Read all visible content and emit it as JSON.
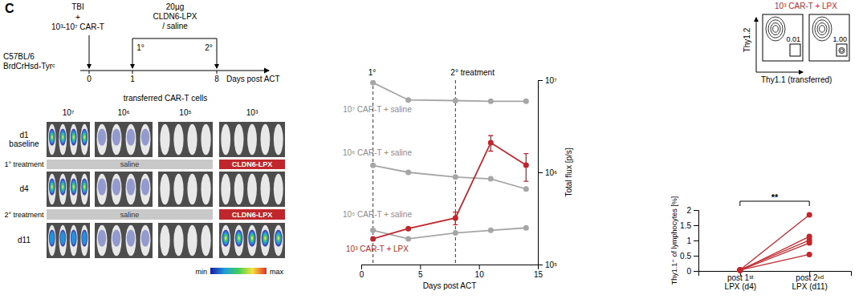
{
  "panel_label": "C",
  "schematic": {
    "treatment_top": [
      "TBI",
      "+",
      "10³-10⁷ CAR-T"
    ],
    "injection": [
      "20µg",
      "CLDN6-LPX",
      "/ saline"
    ],
    "strain": [
      "C57BL/6",
      "BrdCrHsd-Tyrᶜ"
    ],
    "doses": [
      "1°",
      "2°"
    ],
    "days": [
      0,
      1,
      8
    ],
    "axis_label": "Days post ACT"
  },
  "imaging": {
    "header": "transferred CAR-T cells",
    "columns": [
      "10⁷",
      "10⁶",
      "10⁵",
      "10³"
    ],
    "rows": [
      [
        "d1",
        "baseline"
      ],
      [
        "d4"
      ],
      [
        "d11"
      ]
    ],
    "treatments": [
      "1° treatment",
      "2° treatment"
    ],
    "control": "saline",
    "treated": "CLDN6-LPX",
    "colorbar": [
      "min",
      "max"
    ]
  },
  "flow": {
    "title": "10³ CAR-T + LPX",
    "y_label": "Thy1.2",
    "x_label": "Thy1.1 (transferred)",
    "gates": [
      "0.01",
      "1.00"
    ]
  },
  "chart_data": [
    {
      "type": "line",
      "log": "y",
      "marker": "circle",
      "x": [
        1,
        4,
        8,
        11,
        14
      ],
      "xlim": [
        0,
        15
      ],
      "xticks": [
        0,
        5,
        10,
        15
      ],
      "ylim": [
        100000,
        10000000
      ],
      "yticks": [
        {
          "value": 100000,
          "label": "10⁵"
        },
        {
          "value": 1000000,
          "label": "10⁶"
        },
        {
          "value": 10000000,
          "label": "10⁷"
        }
      ],
      "x_label": "Days post ACT",
      "y_label": "Total flux [p/s]",
      "annotations": [
        {
          "x": 1,
          "label": "1°"
        },
        {
          "x": 8,
          "label": "2° treatment"
        }
      ],
      "series": [
        {
          "name": "10⁷ CAR-T + saline",
          "color": "#a6a6a6",
          "values": [
            9400000,
            6100000,
            6000000,
            5900000,
            5900000
          ]
        },
        {
          "name": "10⁶ CAR-T + saline",
          "color": "#a6a6a6",
          "values": [
            1190000,
            1000000,
            890000,
            850000,
            660000
          ]
        },
        {
          "name": "10⁵ CAR-T + saline",
          "color": "#a6a6a6",
          "values": [
            235000,
            190000,
            220000,
            235000,
            250000
          ]
        },
        {
          "name": "10³ CAR-T + LPX",
          "color": "#c0272d",
          "values": [
            190000,
            245000,
            320000,
            2100000,
            1200000
          ],
          "errors": [
            null,
            null,
            50000,
            400000,
            400000
          ]
        }
      ]
    },
    {
      "type": "paired_dot",
      "marker": "circle",
      "color": "#c0272d",
      "categories": [
        "post 1ˢᵗ LPX (d4)",
        "post 2ⁿᵈ LPX (d11)"
      ],
      "ylim": [
        0,
        2
      ],
      "yticks": [
        0,
        0.5,
        1,
        1.5,
        2
      ],
      "y_label": "Thy1.1⁺ of lymphocytes [%]",
      "significance": "**",
      "series": [
        {
          "values": [
            0.03,
            1.84
          ]
        },
        {
          "values": [
            0.02,
            1.13
          ]
        },
        {
          "values": [
            0.04,
            1.01
          ]
        },
        {
          "values": [
            0.02,
            0.92
          ]
        },
        {
          "values": [
            0.03,
            0.54
          ]
        }
      ]
    }
  ]
}
